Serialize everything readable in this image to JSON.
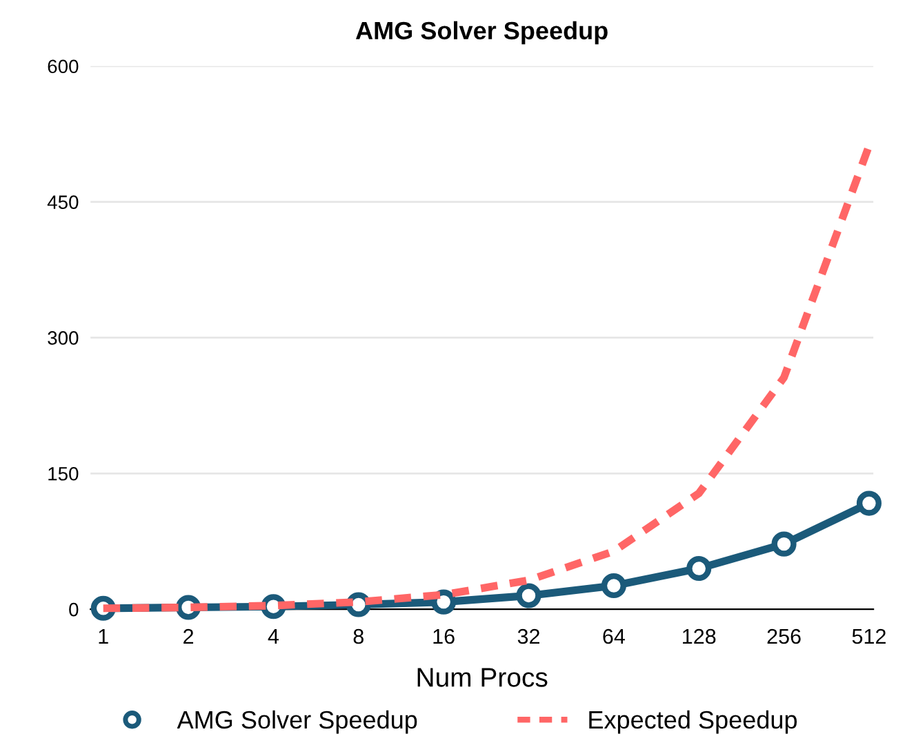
{
  "chart_data": {
    "type": "line",
    "title": "AMG Solver Speedup",
    "xlabel": "Num Procs",
    "categories": [
      "1",
      "2",
      "4",
      "8",
      "16",
      "32",
      "64",
      "128",
      "256",
      "512"
    ],
    "series": [
      {
        "name": "AMG Solver Speedup",
        "color": "#1b5a7a",
        "marker": "circle",
        "line_style": "solid",
        "values": [
          1,
          2,
          3,
          5,
          8,
          15,
          26,
          45,
          72,
          117
        ]
      },
      {
        "name": "Expected Speedup",
        "color": "#ff6666",
        "marker": "none",
        "line_style": "dashed",
        "values": [
          1,
          2,
          4,
          8,
          16,
          32,
          64,
          128,
          256,
          512
        ]
      }
    ],
    "ylim": [
      0,
      600
    ],
    "yticks": [
      0,
      150,
      300,
      450,
      600
    ],
    "grid": "y",
    "legend": "bottom"
  }
}
